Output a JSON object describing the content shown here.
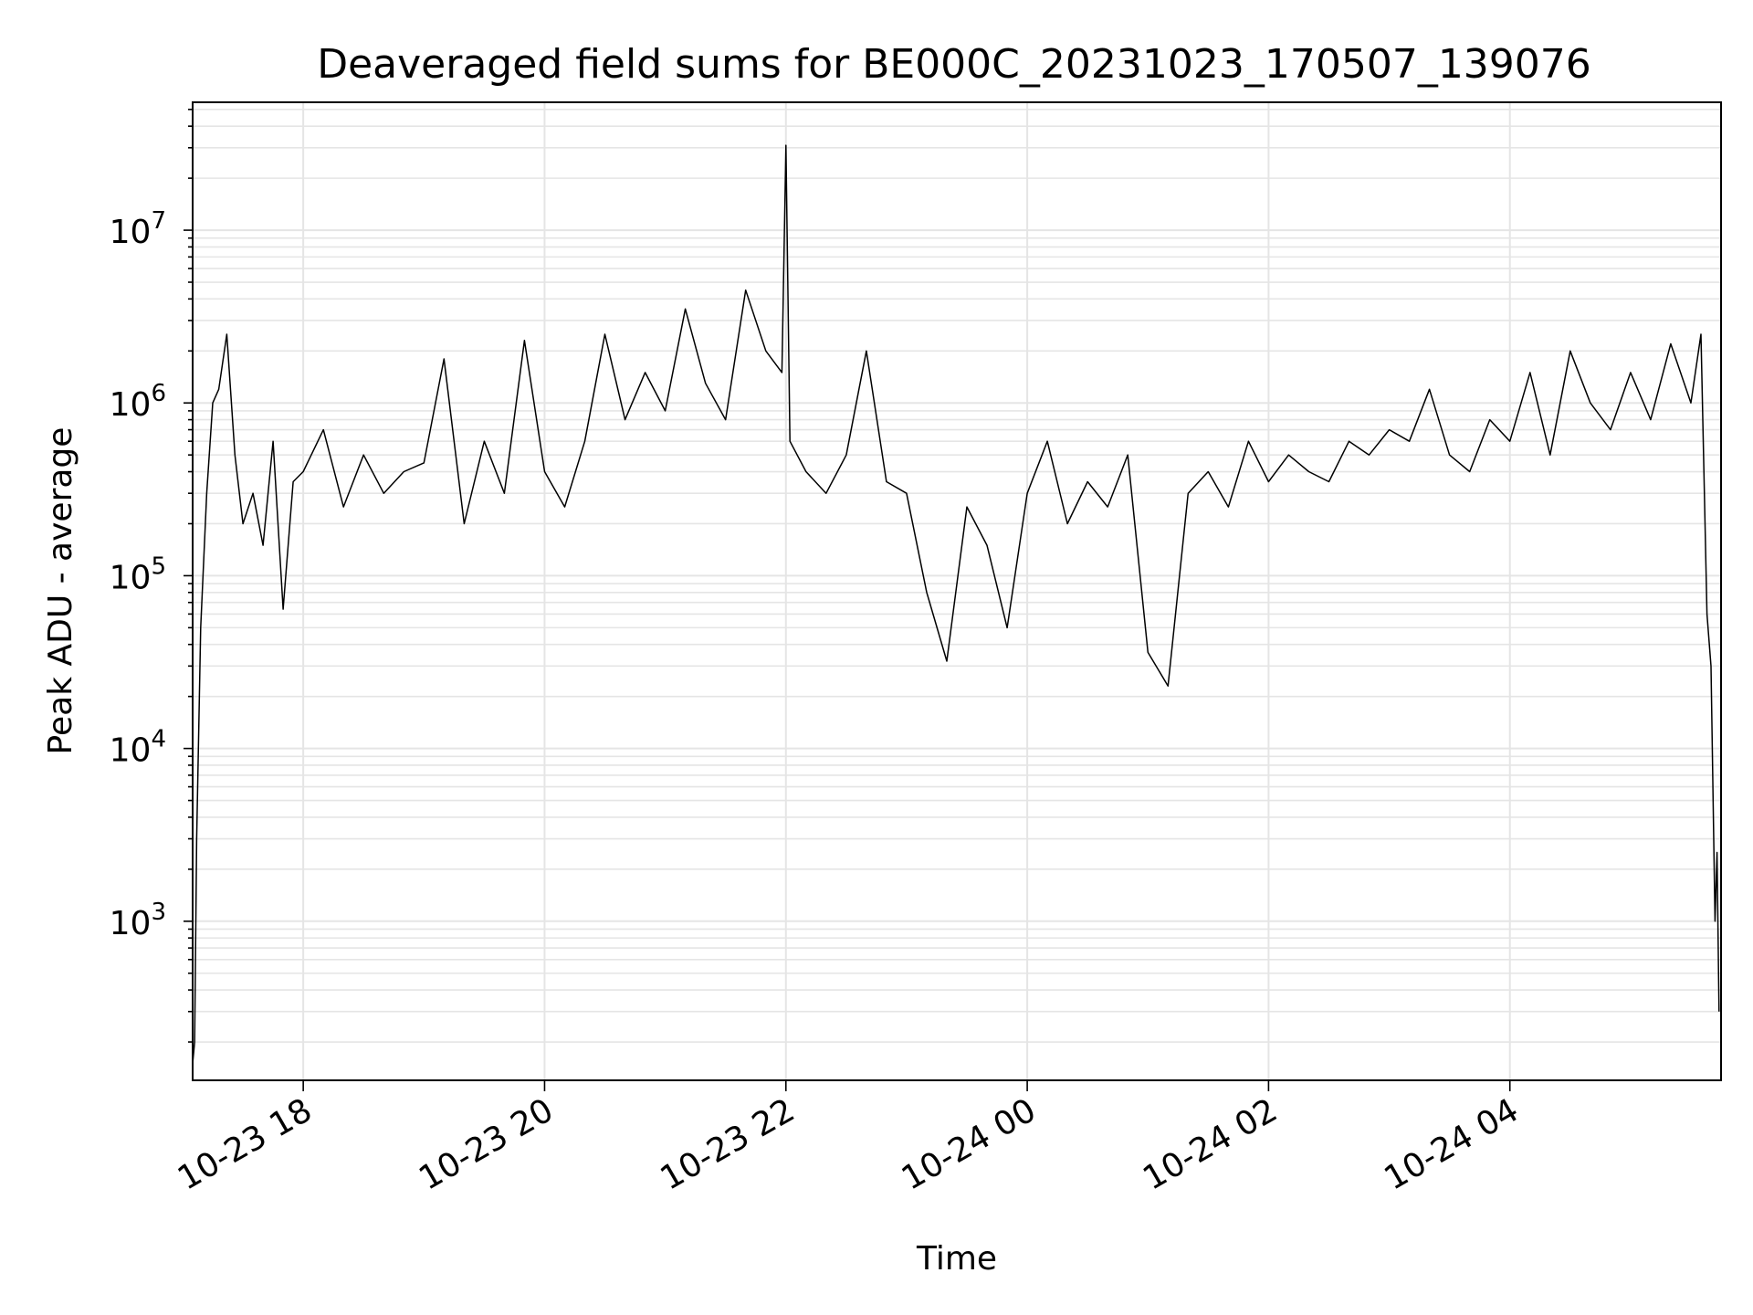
{
  "chart_data": {
    "type": "line",
    "title": "Deaveraged field sums for BE000C_20231023_170507_139076",
    "xlabel": "Time",
    "ylabel": "Peak ADU - average",
    "x_range": [
      "2023-10-23 17:05",
      "2023-10-24 05:45"
    ],
    "y_range": [
      120,
      55000000
    ],
    "yscale": "log",
    "grid": true,
    "grid_color": "#e5e5e5",
    "line_color": "#000000",
    "x_ticks": [
      {
        "value": "2023-10-23 18:00",
        "label": "10-23 18"
      },
      {
        "value": "2023-10-23 20:00",
        "label": "10-23 20"
      },
      {
        "value": "2023-10-23 22:00",
        "label": "10-23 22"
      },
      {
        "value": "2023-10-24 00:00",
        "label": "10-24 00"
      },
      {
        "value": "2023-10-24 02:00",
        "label": "10-24 02"
      },
      {
        "value": "2023-10-24 04:00",
        "label": "10-24 04"
      }
    ],
    "y_ticks": [
      {
        "value": 1000,
        "base": "10",
        "exp": "3"
      },
      {
        "value": 10000,
        "base": "10",
        "exp": "4"
      },
      {
        "value": 100000,
        "base": "10",
        "exp": "5"
      },
      {
        "value": 1000000,
        "base": "10",
        "exp": "6"
      },
      {
        "value": 10000000,
        "base": "10",
        "exp": "7"
      }
    ],
    "series": [
      {
        "x": [
          "2023-10-23 17:05",
          "2023-10-23 17:06",
          "2023-10-23 17:07",
          "2023-10-23 17:09",
          "2023-10-23 17:12",
          "2023-10-23 17:15",
          "2023-10-23 17:18",
          "2023-10-23 17:22",
          "2023-10-23 17:26",
          "2023-10-23 17:30",
          "2023-10-23 17:35",
          "2023-10-23 17:40",
          "2023-10-23 17:45",
          "2023-10-23 17:50",
          "2023-10-23 17:55",
          "2023-10-23 18:00",
          "2023-10-23 18:10",
          "2023-10-23 18:20",
          "2023-10-23 18:30",
          "2023-10-23 18:40",
          "2023-10-23 18:50",
          "2023-10-23 19:00",
          "2023-10-23 19:10",
          "2023-10-23 19:20",
          "2023-10-23 19:30",
          "2023-10-23 19:40",
          "2023-10-23 19:50",
          "2023-10-23 20:00",
          "2023-10-23 20:10",
          "2023-10-23 20:20",
          "2023-10-23 20:30",
          "2023-10-23 20:40",
          "2023-10-23 20:50",
          "2023-10-23 21:00",
          "2023-10-23 21:10",
          "2023-10-23 21:20",
          "2023-10-23 21:30",
          "2023-10-23 21:40",
          "2023-10-23 21:50",
          "2023-10-23 21:58",
          "2023-10-23 22:00",
          "2023-10-23 22:02",
          "2023-10-23 22:10",
          "2023-10-23 22:20",
          "2023-10-23 22:30",
          "2023-10-23 22:40",
          "2023-10-23 22:50",
          "2023-10-23 23:00",
          "2023-10-23 23:10",
          "2023-10-23 23:20",
          "2023-10-23 23:30",
          "2023-10-23 23:40",
          "2023-10-23 23:50",
          "2023-10-24 00:00",
          "2023-10-24 00:10",
          "2023-10-24 00:20",
          "2023-10-24 00:30",
          "2023-10-24 00:40",
          "2023-10-24 00:50",
          "2023-10-24 01:00",
          "2023-10-24 01:10",
          "2023-10-24 01:20",
          "2023-10-24 01:30",
          "2023-10-24 01:40",
          "2023-10-24 01:50",
          "2023-10-24 02:00",
          "2023-10-24 02:10",
          "2023-10-24 02:20",
          "2023-10-24 02:30",
          "2023-10-24 02:40",
          "2023-10-24 02:50",
          "2023-10-24 03:00",
          "2023-10-24 03:10",
          "2023-10-24 03:20",
          "2023-10-24 03:30",
          "2023-10-24 03:40",
          "2023-10-24 03:50",
          "2023-10-24 04:00",
          "2023-10-24 04:10",
          "2023-10-24 04:20",
          "2023-10-24 04:30",
          "2023-10-24 04:40",
          "2023-10-24 04:50",
          "2023-10-24 05:00",
          "2023-10-24 05:10",
          "2023-10-24 05:20",
          "2023-10-24 05:30",
          "2023-10-24 05:35",
          "2023-10-24 05:38",
          "2023-10-24 05:40",
          "2023-10-24 05:42",
          "2023-10-24 05:43",
          "2023-10-24 05:44"
        ],
        "values": [
          150,
          200,
          3000,
          50000,
          300000,
          1000000,
          1200000,
          2500000,
          500000,
          200000,
          300000,
          150000,
          600000,
          64000,
          350000,
          400000,
          700000,
          250000,
          500000,
          300000,
          400000,
          450000,
          1800000,
          200000,
          600000,
          300000,
          2300000,
          400000,
          250000,
          600000,
          2500000,
          800000,
          1500000,
          900000,
          3500000,
          1300000,
          800000,
          4500000,
          2000000,
          1500000,
          31000000,
          600000,
          400000,
          300000,
          500000,
          2000000,
          350000,
          300000,
          80000,
          32000,
          250000,
          150000,
          50000,
          300000,
          600000,
          200000,
          350000,
          250000,
          500000,
          36000,
          23000,
          300000,
          400000,
          250000,
          600000,
          350000,
          500000,
          400000,
          350000,
          600000,
          500000,
          700000,
          600000,
          1200000,
          500000,
          400000,
          800000,
          600000,
          1500000,
          500000,
          2000000,
          1000000,
          700000,
          1500000,
          800000,
          2200000,
          1000000,
          2500000,
          60000,
          30000,
          1000,
          2500,
          300
        ]
      }
    ]
  }
}
